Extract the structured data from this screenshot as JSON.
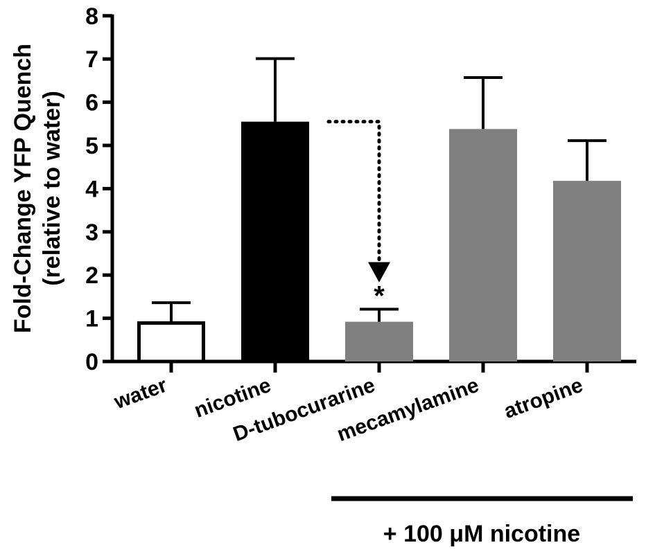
{
  "chart_data": {
    "type": "bar",
    "title": "",
    "ylabel_lines": [
      "Fold-Change YFP Quench",
      "(relative to water)"
    ],
    "xlabel": "",
    "ylim": [
      0,
      8
    ],
    "yticks": [
      0,
      1,
      2,
      3,
      4,
      5,
      6,
      7,
      8
    ],
    "grid": false,
    "legend": "none",
    "categories": [
      "water",
      "nicotine",
      "D-tubocurarine",
      "mecamylamine",
      "atropine"
    ],
    "values": [
      0.93,
      5.55,
      0.92,
      5.38,
      4.18
    ],
    "error_upper": [
      1.36,
      7.01,
      1.21,
      6.57,
      5.11
    ],
    "bar_styles": [
      {
        "fill": "#ffffff",
        "stroke": "#000000"
      },
      {
        "fill": "#000000",
        "stroke": "#000000"
      },
      {
        "fill": "#808080",
        "stroke": "#808080"
      },
      {
        "fill": "#808080",
        "stroke": "#808080"
      },
      {
        "fill": "#808080",
        "stroke": "#808080"
      }
    ],
    "annotations": {
      "significance_marker": "*",
      "group_label": "+ 100 μM nicotine",
      "group_categories": [
        "D-tubocurarine",
        "mecamylamine",
        "atropine"
      ],
      "arrow": {
        "from": "nicotine",
        "to": "D-tubocurarine"
      }
    },
    "colors": {
      "axis": "#000000",
      "treatment_bars": "#808080",
      "nicotine_bar": "#000000"
    }
  }
}
